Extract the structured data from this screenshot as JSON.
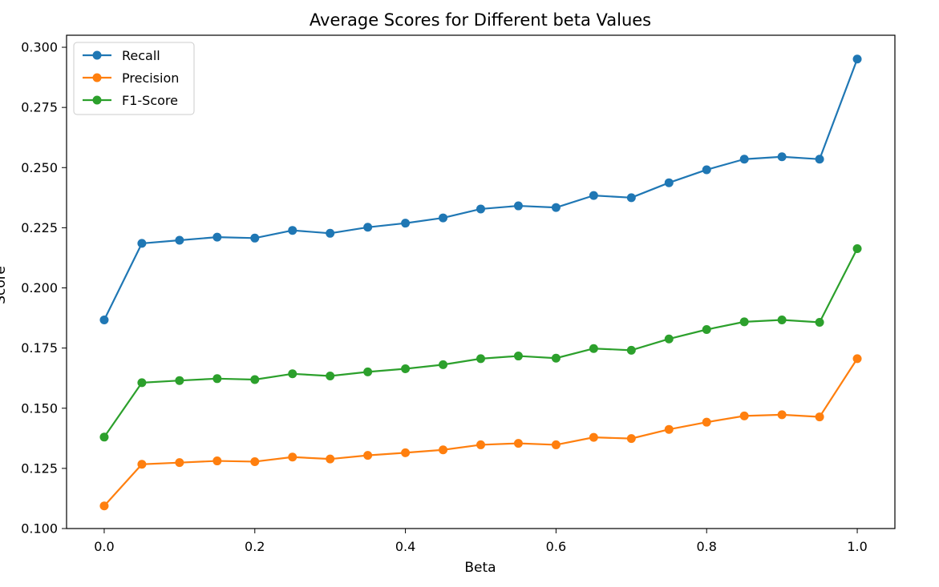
{
  "chart_data": {
    "type": "line",
    "title": "Average Scores for Different beta Values",
    "xlabel": "Beta",
    "ylabel": "Score",
    "xlim": [
      -0.05,
      1.05
    ],
    "ylim": [
      0.1,
      0.305
    ],
    "xticks": [
      "0.0",
      "0.2",
      "0.4",
      "0.6",
      "0.8",
      "1.0"
    ],
    "yticks": [
      "0.100",
      "0.125",
      "0.150",
      "0.175",
      "0.200",
      "0.225",
      "0.250",
      "0.275",
      "0.300"
    ],
    "grid": false,
    "legend_position": "top-left",
    "x": [
      0.0,
      0.05,
      0.1,
      0.15,
      0.2,
      0.25,
      0.3,
      0.35,
      0.4,
      0.45,
      0.5,
      0.55,
      0.6,
      0.65,
      0.7,
      0.75,
      0.8,
      0.85,
      0.9,
      0.95,
      1.0
    ],
    "series": [
      {
        "name": "Recall",
        "color": "#1f77b4",
        "values": [
          0.1867,
          0.2185,
          0.2198,
          0.2211,
          0.2207,
          0.2239,
          0.2227,
          0.2252,
          0.2269,
          0.2291,
          0.2328,
          0.2341,
          0.2334,
          0.2384,
          0.2375,
          0.2437,
          0.2491,
          0.2535,
          0.2545,
          0.2535,
          0.2951
        ]
      },
      {
        "name": "Precision",
        "color": "#ff7f0e",
        "values": [
          0.1094,
          0.1267,
          0.1274,
          0.1281,
          0.1278,
          0.1297,
          0.1289,
          0.1304,
          0.1315,
          0.1327,
          0.1348,
          0.1354,
          0.1348,
          0.1379,
          0.1374,
          0.1412,
          0.1442,
          0.1468,
          0.1473,
          0.1464,
          0.1706
        ]
      },
      {
        "name": "F1-Score",
        "color": "#2ca02c",
        "values": [
          0.138,
          0.1606,
          0.1615,
          0.1623,
          0.1619,
          0.1643,
          0.1634,
          0.1651,
          0.1664,
          0.1681,
          0.1706,
          0.1717,
          0.1708,
          0.1748,
          0.1741,
          0.1788,
          0.1827,
          0.1859,
          0.1867,
          0.1857,
          0.2163
        ]
      }
    ]
  }
}
